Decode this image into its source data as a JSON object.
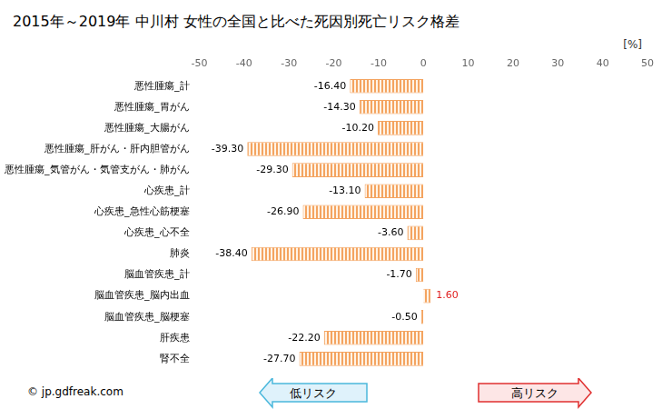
{
  "chart_data": {
    "type": "bar",
    "orientation": "horizontal",
    "title": "2015年～2019年 中川村 女性の全国と比べた死因別死亡リスク格差",
    "xlabel": "[%]",
    "categories": [
      "悪性腫瘍_計",
      "悪性腫瘍_胃がん",
      "悪性腫瘍_大腸がん",
      "悪性腫瘍_肝がん・肝内胆管がん",
      "悪性腫瘍_気管がん・気管支がん・肺がん",
      "心疾患_計",
      "心疾患_急性心筋梗塞",
      "心疾患_心不全",
      "肺炎",
      "脳血管疾患_計",
      "脳血管疾患_脳内出血",
      "脳血管疾患_脳梗塞",
      "肝疾患",
      "腎不全"
    ],
    "values": [
      -16.4,
      -14.3,
      -10.2,
      -39.3,
      -29.3,
      -13.1,
      -26.9,
      -3.6,
      -38.4,
      -1.7,
      1.6,
      -0.5,
      -22.2,
      -27.7
    ],
    "value_labels": [
      "-16.40",
      "-14.30",
      "-10.20",
      "-39.30",
      "-29.30",
      "-13.10",
      "-26.90",
      "-3.60",
      "-38.40",
      "-1.70",
      "1.60",
      "-0.50",
      "-22.20",
      "-27.70"
    ],
    "color": "#f4a460",
    "xlim": [
      -50,
      50
    ],
    "xticks": [
      -50,
      -40,
      -30,
      -20,
      -10,
      0,
      10,
      20,
      30,
      40,
      50
    ],
    "grid": false,
    "data_labels": true,
    "annotations": {
      "low": "低リスク",
      "high": "高リスク",
      "source": "© jp.gdfreak.com"
    }
  }
}
